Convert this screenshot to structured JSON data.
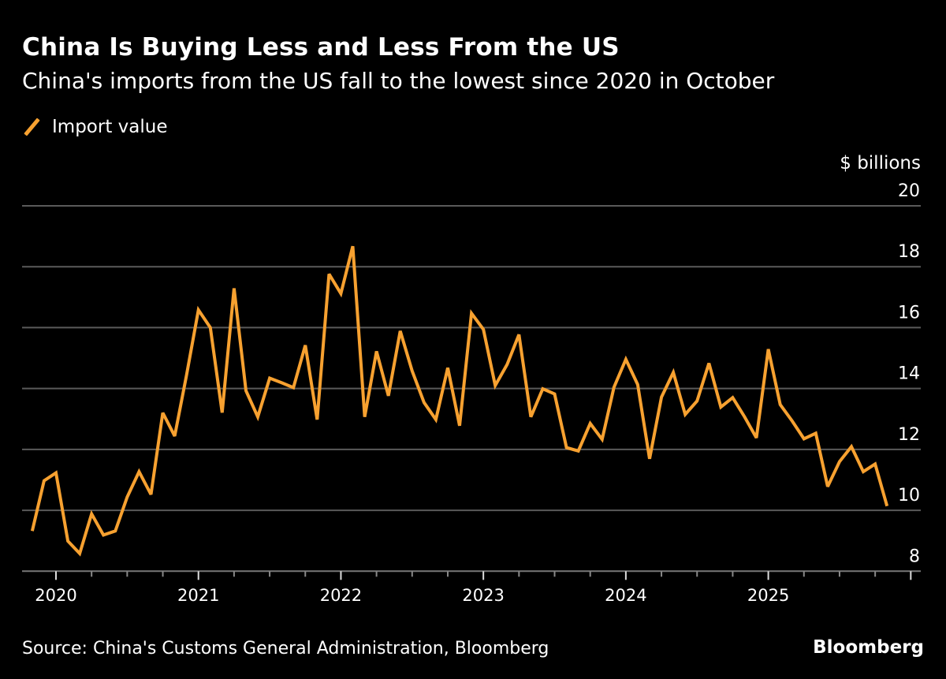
{
  "header": {
    "title": "China Is Buying Less and Less From the US",
    "subtitle": "China's imports from the US fall to the lowest since 2020 in October"
  },
  "footer": {
    "source": "Source: China's Customs General Administration, Bloomberg",
    "logo": "Bloomberg"
  },
  "chart_data": {
    "type": "line",
    "title": "China Is Buying Less and Less From the US",
    "subtitle": "China's imports from the US fall to the lowest since 2020 in October",
    "ylabel": "$ billions",
    "xlabel": "",
    "ylim": [
      8,
      20
    ],
    "yticks": [
      "20",
      "18",
      "16",
      "14",
      "12",
      "10",
      "8"
    ],
    "xticks": [
      "2020",
      "2021",
      "2022",
      "2023",
      "2024",
      "2025"
    ],
    "grid": true,
    "y_axis_position": "right",
    "legend_position": "top-left",
    "color": "#f7a130",
    "series": [
      {
        "name": "Import value",
        "x": [
          "2019-10",
          "2019-11",
          "2019-12",
          "2020-01",
          "2020-02",
          "2020-03",
          "2020-04",
          "2020-05",
          "2020-06",
          "2020-07",
          "2020-08",
          "2020-09",
          "2020-10",
          "2020-11",
          "2020-12",
          "2021-01",
          "2021-02",
          "2021-03",
          "2021-04",
          "2021-05",
          "2021-06",
          "2021-07",
          "2021-08",
          "2021-09",
          "2021-10",
          "2021-11",
          "2021-12",
          "2022-01",
          "2022-02",
          "2022-03",
          "2022-04",
          "2022-05",
          "2022-06",
          "2022-07",
          "2022-08",
          "2022-09",
          "2022-10",
          "2022-11",
          "2022-12",
          "2023-01",
          "2023-02",
          "2023-03",
          "2023-04",
          "2023-05",
          "2023-06",
          "2023-07",
          "2023-08",
          "2023-09",
          "2023-10",
          "2023-11",
          "2023-12",
          "2024-01",
          "2024-02",
          "2024-03",
          "2024-04",
          "2024-05",
          "2024-06",
          "2024-07",
          "2024-08",
          "2024-09",
          "2024-10",
          "2024-11",
          "2024-12",
          "2025-01",
          "2025-02",
          "2025-03",
          "2025-04",
          "2025-05",
          "2025-06",
          "2025-07",
          "2025-08",
          "2025-09",
          "2025-10"
        ],
        "values": [
          9.32,
          10.97,
          11.23,
          8.99,
          8.58,
          9.88,
          9.19,
          9.32,
          10.44,
          11.27,
          10.52,
          13.2,
          12.44,
          14.45,
          16.58,
          16.0,
          13.21,
          17.29,
          13.93,
          13.07,
          14.34,
          14.19,
          14.03,
          15.42,
          12.98,
          17.76,
          17.12,
          18.67,
          13.07,
          15.22,
          13.76,
          15.89,
          14.58,
          13.54,
          12.98,
          14.68,
          12.78,
          16.47,
          15.94,
          14.1,
          14.79,
          15.77,
          13.07,
          13.99,
          13.82,
          12.06,
          11.95,
          12.85,
          12.33,
          14.04,
          14.96,
          14.13,
          11.69,
          13.72,
          14.53,
          13.15,
          13.59,
          14.83,
          13.39,
          13.7,
          13.07,
          12.38,
          15.29,
          13.47,
          12.94,
          12.35,
          12.53,
          10.78,
          11.6,
          12.09,
          11.27,
          11.52,
          10.14
        ]
      }
    ]
  }
}
